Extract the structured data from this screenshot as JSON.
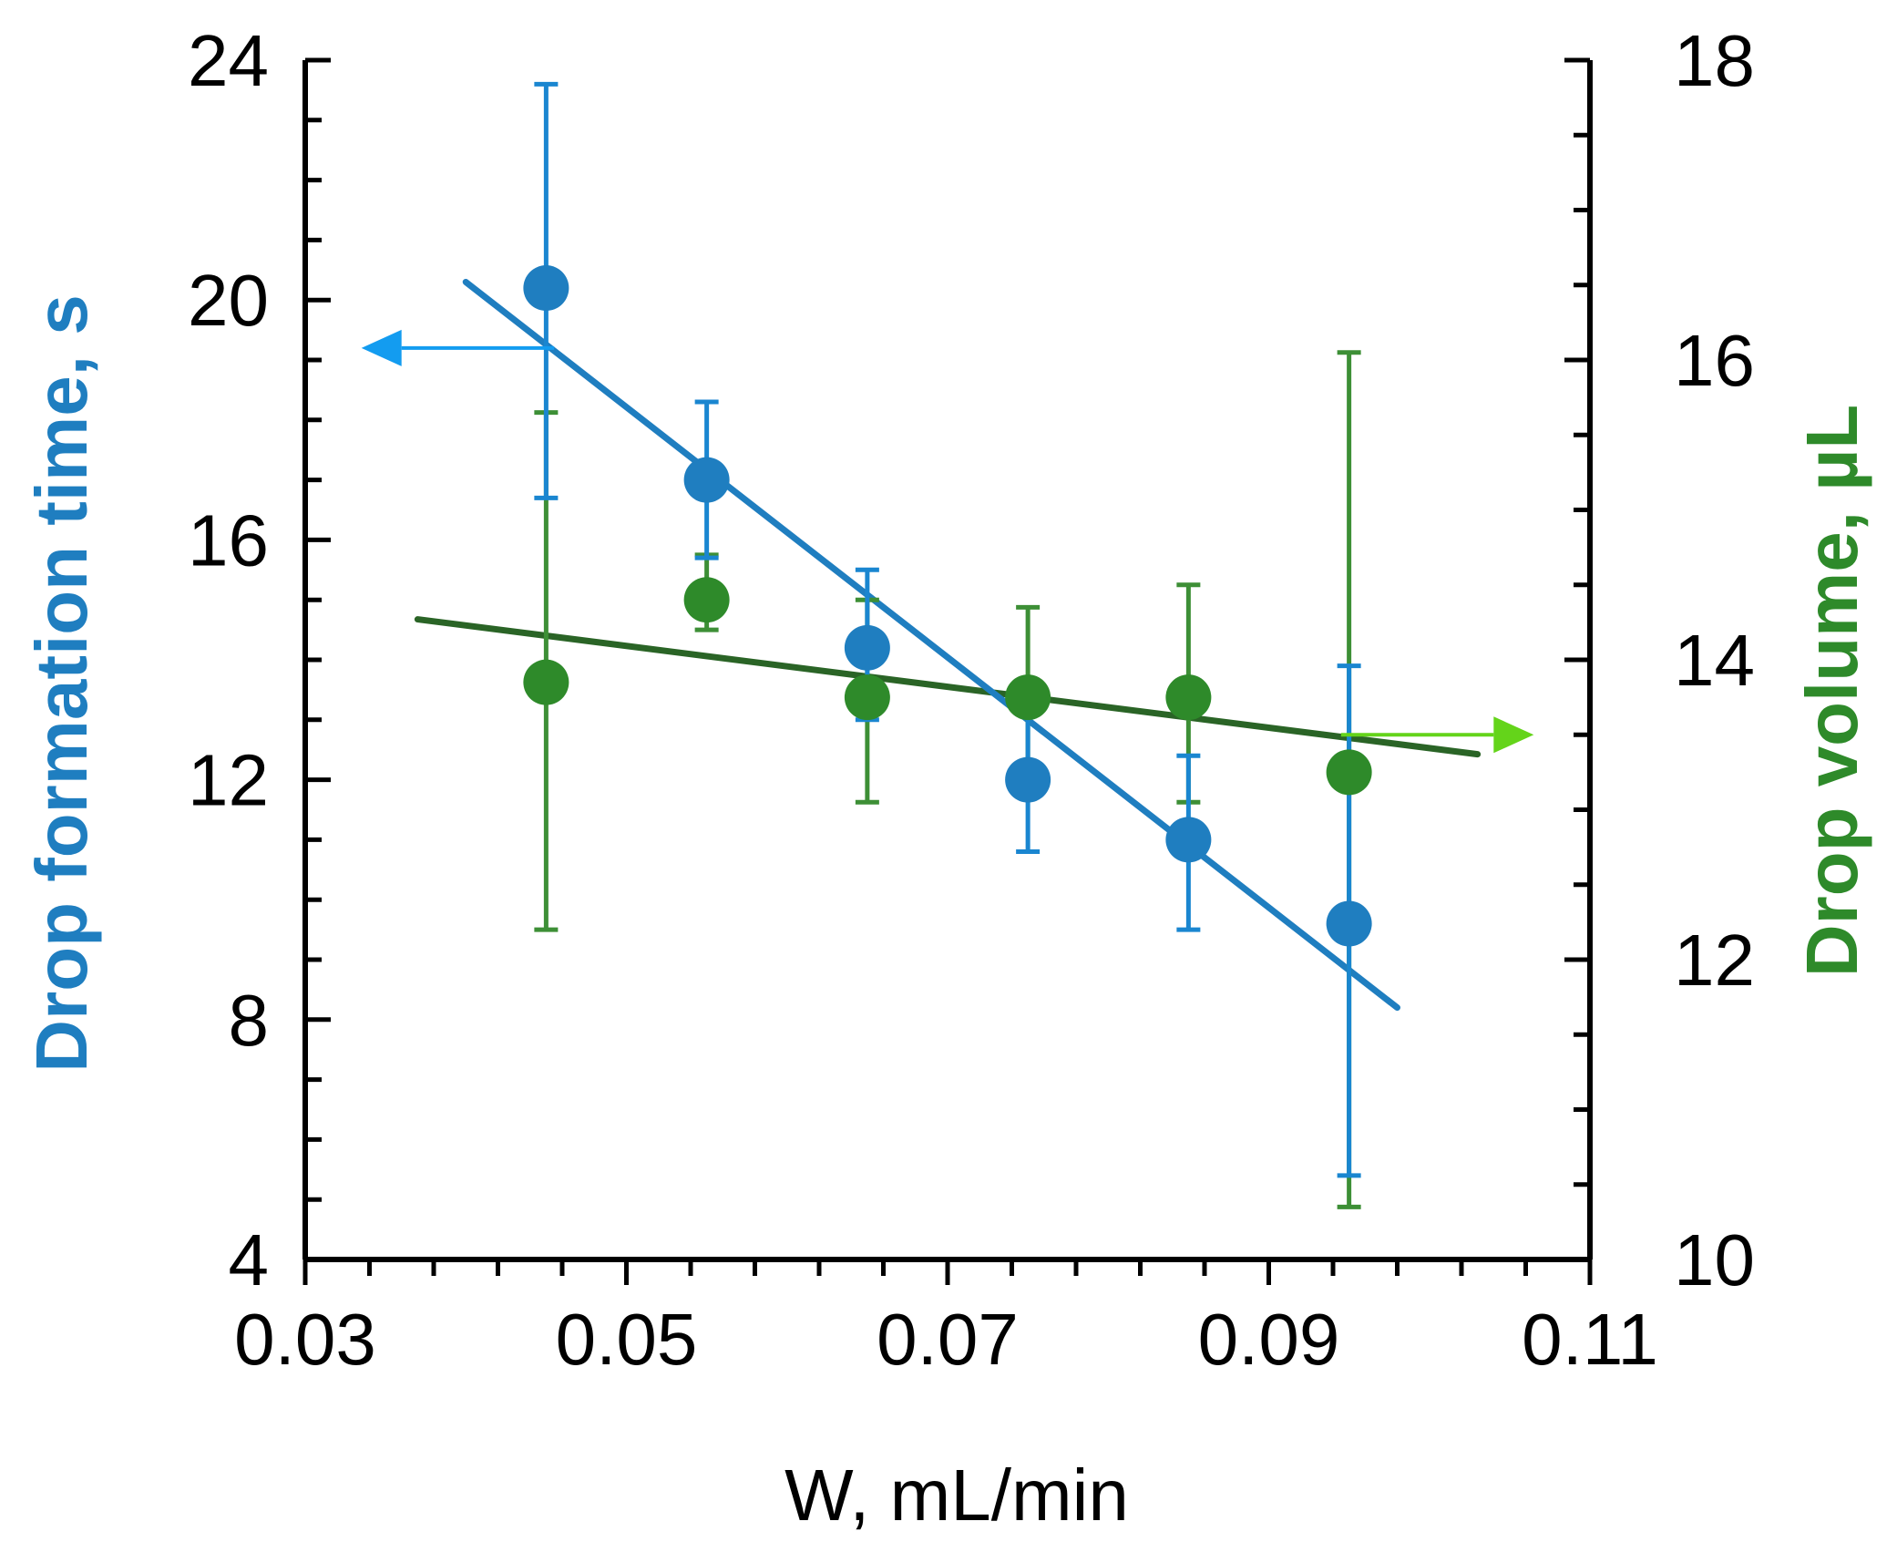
{
  "chart_data": {
    "type": "scatter",
    "title": "",
    "xlabel": "W, mL/min",
    "ylabel_left": "Drop formation time, s",
    "ylabel_right": "Drop volume, µL",
    "xlim": [
      0.03,
      0.11
    ],
    "ylim_left": [
      4,
      24
    ],
    "ylim_right": [
      10,
      18
    ],
    "x_ticks": [
      "0.03",
      "0.05",
      "0.07",
      "0.09",
      "0.11"
    ],
    "y_left_ticks": [
      "4",
      "8",
      "12",
      "16",
      "20",
      "24"
    ],
    "y_right_ticks": [
      "10",
      "12",
      "14",
      "16",
      "18"
    ],
    "colors": {
      "time": "#1f7ec0",
      "time_error": "#1a86d0",
      "time_arrow": "#139cf0",
      "volume": "#2e8a2a",
      "volume_error": "#3d8f36",
      "volume_fit": "#2a6426",
      "volume_arrow": "#64d41a",
      "axis": "#000000"
    },
    "series": [
      {
        "name": "Drop formation time",
        "axis": "left",
        "x": [
          0.045,
          0.055,
          0.065,
          0.075,
          0.085,
          0.095
        ],
        "y": [
          20.2,
          17.0,
          14.2,
          12.0,
          11.0,
          9.6
        ],
        "err_low": [
          3.5,
          1.3,
          1.2,
          1.2,
          1.5,
          4.2
        ],
        "err_high": [
          3.4,
          1.3,
          1.3,
          1.2,
          1.4,
          4.3
        ],
        "fit": {
          "x": [
            0.04,
            0.098
          ],
          "y": [
            20.3,
            8.2
          ]
        },
        "arrow": {
          "direction": "left",
          "y": 19.2,
          "x_start": 0.0455,
          "x_end": 0.0335
        }
      },
      {
        "name": "Drop volume",
        "axis": "right",
        "x": [
          0.045,
          0.055,
          0.065,
          0.075,
          0.085,
          0.095
        ],
        "y": [
          13.85,
          14.4,
          13.75,
          13.75,
          13.75,
          13.25
        ],
        "err_low": [
          1.65,
          0.2,
          0.7,
          0.55,
          0.7,
          2.9
        ],
        "err_high": [
          1.8,
          0.3,
          0.65,
          0.6,
          0.75,
          2.8
        ],
        "fit": {
          "x": [
            0.037,
            0.103
          ],
          "y": [
            14.27,
            13.37
          ]
        },
        "arrow": {
          "direction": "right",
          "y": 13.5,
          "x_start": 0.0945,
          "x_end": 0.1065
        }
      }
    ]
  }
}
